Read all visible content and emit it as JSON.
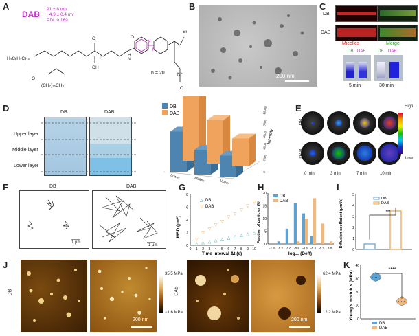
{
  "panels": {
    "A": {
      "label": "A",
      "name": "DAB",
      "size": "91 ± 8 nm",
      "zeta": "−4.9 ± 0.4 mv",
      "pdi": "PDI: 0.169",
      "n_label": "n = 20",
      "br": "Br"
    },
    "B": {
      "label": "B",
      "scale": "200 nm"
    },
    "C": {
      "label": "C",
      "row1": "DB",
      "row2": "DAB",
      "col1": "Micelles",
      "col2": "Merge",
      "vial_db": "DB",
      "vial_dab": "DAB",
      "t1": "5 min",
      "t2": "30 min"
    },
    "D": {
      "label": "D",
      "col1": "DB",
      "col2": "DAB",
      "upper": "Upper layer",
      "middle": "Middle layer",
      "lower": "Lower layer",
      "legend": [
        "DB",
        "DAB"
      ],
      "zlabel": "Intensity",
      "zticks": [
        "0",
        "2000",
        "4000",
        "6000",
        "8000",
        "10000"
      ],
      "xticks": [
        "Lower",
        "Middle",
        "Upper"
      ]
    },
    "E": {
      "label": "E",
      "row1": "DB",
      "row2": "DAB",
      "times": [
        "0 min",
        "3 min",
        "7 min",
        "10 min"
      ],
      "high": "High",
      "low": "Low"
    },
    "F": {
      "label": "F",
      "col1": "DB",
      "col2": "DAB",
      "scale": "1 μm"
    },
    "G": {
      "label": "G",
      "ylabel": "MSD (μm²)",
      "xlabel": "Time interval Δt (s)",
      "legend": [
        "DB",
        "DAB"
      ]
    },
    "H": {
      "label": "H",
      "ylabel": "Fraction of particles (%)",
      "xlabel": "log₁₀ (Deff)",
      "legend": [
        "DB",
        "DAB"
      ]
    },
    "I": {
      "label": "I",
      "ylabel": "Diffusion coefficient (μm²/s)",
      "legend": [
        "DB",
        "DAB"
      ],
      "sig": "***"
    },
    "J": {
      "label": "J",
      "row1": "DB",
      "row2": "DAB",
      "scale": "200 nm",
      "db_max": "35.5 MPa",
      "db_min": "−1.6 MPa",
      "dab_max": "62.4 MPa",
      "dab_min": "12.2 MPa"
    },
    "K": {
      "label": "K",
      "ylabel": "Young's modulus (MPa)",
      "legend": [
        "DB",
        "DAB"
      ],
      "sig": "****"
    }
  },
  "chart_data": [
    {
      "type": "bar",
      "panel": "D",
      "categories": [
        "Lower",
        "Middle",
        "Upper"
      ],
      "series": [
        {
          "name": "DB",
          "values": [
            6500,
            4000,
            3500
          ]
        },
        {
          "name": "DAB",
          "values": [
            10500,
            7000,
            4500
          ]
        }
      ],
      "zlabel": "Intensity",
      "zlim": [
        0,
        10000
      ]
    },
    {
      "type": "scatter",
      "panel": "G",
      "x": [
        1,
        2,
        3,
        4,
        5,
        6,
        7,
        8,
        9,
        10
      ],
      "series": [
        {
          "name": "DB",
          "values": [
            0.25,
            0.5,
            0.6,
            0.8,
            1.0,
            1.2,
            1.4,
            1.6,
            1.8,
            2.0
          ]
        },
        {
          "name": "DAB",
          "values": [
            1.0,
            2.0,
            2.6,
            3.2,
            3.8,
            4.5,
            5.0,
            5.6,
            6.2,
            6.8
          ]
        }
      ],
      "xlabel": "Time interval Δt (s)",
      "ylabel": "MSD (μm²)",
      "xlim": [
        0,
        10
      ],
      "ylim": [
        0,
        8
      ],
      "xticks": [
        0,
        1,
        2,
        3,
        4,
        5,
        6,
        7,
        8,
        9,
        10
      ],
      "yticks": [
        0,
        2,
        4,
        6,
        8
      ]
    },
    {
      "type": "bar",
      "panel": "H",
      "categories": [
        "-1.4",
        "-1.2",
        "-1.0",
        "-0.8",
        "-0.6",
        "-0.4",
        "-0.2",
        "0.0"
      ],
      "series": [
        {
          "name": "DB",
          "values": [
            0,
            1,
            6,
            16,
            12,
            3,
            0,
            0
          ]
        },
        {
          "name": "DAB",
          "values": [
            0,
            0,
            0,
            1,
            10,
            18,
            8,
            1
          ]
        }
      ],
      "xlabel": "log₁₀ (Deff)",
      "ylabel": "Fraction of particles (%)",
      "ylim": [
        0,
        20
      ],
      "yticks": [
        0,
        5,
        10,
        15,
        20
      ]
    },
    {
      "type": "bar",
      "panel": "I",
      "categories": [
        "DB",
        "DAB"
      ],
      "values": [
        0.5,
        3.5
      ],
      "ylabel": "Diffusion coefficient (μm²/s)",
      "ylim": [
        0,
        5
      ],
      "yticks": [
        0,
        1,
        2,
        3,
        4,
        5
      ]
    },
    {
      "type": "violin",
      "panel": "K",
      "categories": [
        "DB",
        "DAB"
      ],
      "values": [
        31,
        13
      ],
      "ylabel": "Young's modulus (MPa)",
      "ylim": [
        0,
        40
      ],
      "yticks": [
        0,
        10,
        20,
        30,
        40
      ]
    }
  ]
}
